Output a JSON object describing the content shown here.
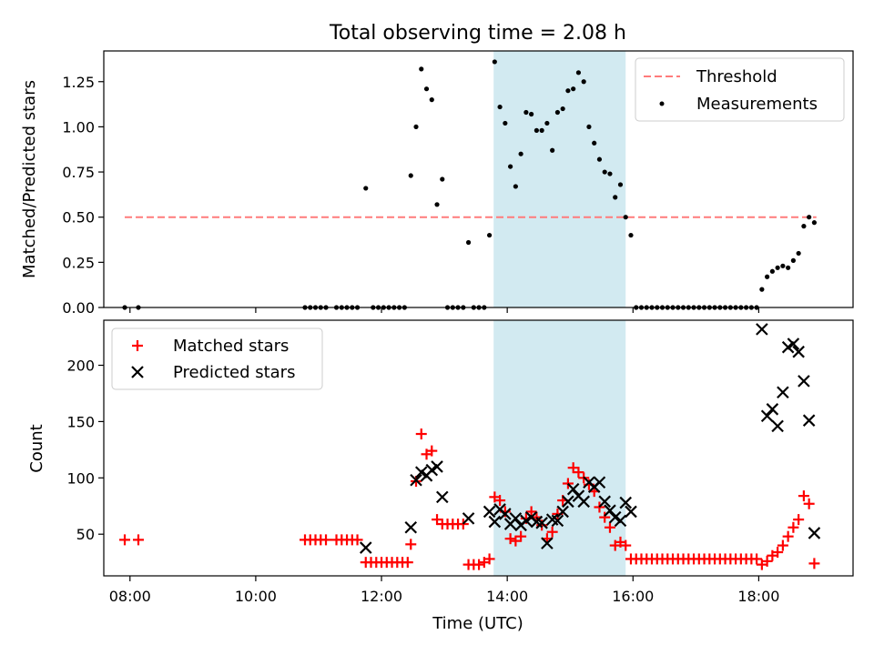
{
  "chart_data": [
    {
      "type": "scatter",
      "title": "Total observing time = 2.08 h",
      "xlabel": "",
      "ylabel": "Matched/Predicted stars",
      "ylim": [
        0,
        1.42
      ],
      "xlim": [
        "07:35",
        "19:30"
      ],
      "yticks": [
        "0.00",
        "0.25",
        "0.50",
        "0.75",
        "1.00",
        "1.25"
      ],
      "highlight_span": [
        "13:47",
        "15:53"
      ],
      "legend_position": "upper right",
      "series": [
        {
          "name": "Threshold",
          "style": "dashed-line",
          "color": "#ff7b7b",
          "x": [
            "07:55",
            "18:55"
          ],
          "y": [
            0.5,
            0.5
          ]
        },
        {
          "name": "Measurements",
          "style": "dot",
          "color": "#000000",
          "points": [
            [
              "07:55",
              0.0
            ],
            [
              "08:08",
              0.0
            ],
            [
              "10:47",
              0.0
            ],
            [
              "10:52",
              0.0
            ],
            [
              "10:57",
              0.0
            ],
            [
              "11:02",
              0.0
            ],
            [
              "11:07",
              0.0
            ],
            [
              "11:17",
              0.0
            ],
            [
              "11:22",
              0.0
            ],
            [
              "11:27",
              0.0
            ],
            [
              "11:32",
              0.0
            ],
            [
              "11:37",
              0.0
            ],
            [
              "11:45",
              0.66
            ],
            [
              "11:52",
              0.0
            ],
            [
              "11:57",
              0.0
            ],
            [
              "12:02",
              0.0
            ],
            [
              "12:07",
              0.0
            ],
            [
              "12:12",
              0.0
            ],
            [
              "12:17",
              0.0
            ],
            [
              "12:22",
              0.0
            ],
            [
              "12:28",
              0.73
            ],
            [
              "12:33",
              1.0
            ],
            [
              "12:38",
              1.32
            ],
            [
              "12:43",
              1.21
            ],
            [
              "12:48",
              1.15
            ],
            [
              "12:53",
              0.57
            ],
            [
              "12:58",
              0.71
            ],
            [
              "13:03",
              0.0
            ],
            [
              "13:08",
              0.0
            ],
            [
              "13:13",
              0.0
            ],
            [
              "13:18",
              0.0
            ],
            [
              "13:23",
              0.36
            ],
            [
              "13:28",
              0.0
            ],
            [
              "13:33",
              0.0
            ],
            [
              "13:38",
              0.0
            ],
            [
              "13:43",
              0.4
            ],
            [
              "13:48",
              1.36
            ],
            [
              "13:53",
              1.11
            ],
            [
              "13:58",
              1.02
            ],
            [
              "14:03",
              0.78
            ],
            [
              "14:08",
              0.67
            ],
            [
              "14:13",
              0.85
            ],
            [
              "14:18",
              1.08
            ],
            [
              "14:23",
              1.07
            ],
            [
              "14:28",
              0.98
            ],
            [
              "14:33",
              0.98
            ],
            [
              "14:38",
              1.02
            ],
            [
              "14:43",
              0.87
            ],
            [
              "14:48",
              1.08
            ],
            [
              "14:53",
              1.1
            ],
            [
              "14:58",
              1.2
            ],
            [
              "15:03",
              1.21
            ],
            [
              "15:08",
              1.3
            ],
            [
              "15:13",
              1.25
            ],
            [
              "15:18",
              1.0
            ],
            [
              "15:23",
              0.91
            ],
            [
              "15:28",
              0.82
            ],
            [
              "15:33",
              0.75
            ],
            [
              "15:38",
              0.74
            ],
            [
              "15:43",
              0.61
            ],
            [
              "15:48",
              0.68
            ],
            [
              "15:53",
              0.5
            ],
            [
              "15:58",
              0.4
            ],
            [
              "16:03",
              0.0
            ],
            [
              "16:08",
              0.0
            ],
            [
              "16:13",
              0.0
            ],
            [
              "16:18",
              0.0
            ],
            [
              "16:23",
              0.0
            ],
            [
              "16:28",
              0.0
            ],
            [
              "16:33",
              0.0
            ],
            [
              "16:38",
              0.0
            ],
            [
              "16:43",
              0.0
            ],
            [
              "16:48",
              0.0
            ],
            [
              "16:53",
              0.0
            ],
            [
              "16:58",
              0.0
            ],
            [
              "17:03",
              0.0
            ],
            [
              "17:08",
              0.0
            ],
            [
              "17:13",
              0.0
            ],
            [
              "17:18",
              0.0
            ],
            [
              "17:23",
              0.0
            ],
            [
              "17:28",
              0.0
            ],
            [
              "17:33",
              0.0
            ],
            [
              "17:38",
              0.0
            ],
            [
              "17:43",
              0.0
            ],
            [
              "17:48",
              0.0
            ],
            [
              "17:53",
              0.0
            ],
            [
              "17:58",
              0.0
            ],
            [
              "18:03",
              0.1
            ],
            [
              "18:08",
              0.17
            ],
            [
              "18:13",
              0.2
            ],
            [
              "18:18",
              0.22
            ],
            [
              "18:23",
              0.23
            ],
            [
              "18:28",
              0.22
            ],
            [
              "18:33",
              0.26
            ],
            [
              "18:38",
              0.3
            ],
            [
              "18:43",
              0.45
            ],
            [
              "18:48",
              0.5
            ],
            [
              "18:53",
              0.47
            ]
          ]
        }
      ]
    },
    {
      "type": "scatter",
      "title": "",
      "xlabel": "Time (UTC)",
      "ylabel": "Count",
      "ylim": [
        13,
        240
      ],
      "xlim": [
        "07:35",
        "19:30"
      ],
      "xticks": [
        "08:00",
        "10:00",
        "12:00",
        "14:00",
        "16:00",
        "18:00"
      ],
      "yticks": [
        "50",
        "100",
        "150",
        "200"
      ],
      "highlight_span": [
        "13:47",
        "15:53"
      ],
      "legend_position": "upper left",
      "series": [
        {
          "name": "Matched stars",
          "marker": "plus",
          "color": "#ff0000",
          "points": [
            [
              "07:55",
              45
            ],
            [
              "08:08",
              45
            ],
            [
              "10:47",
              45
            ],
            [
              "10:52",
              45
            ],
            [
              "10:57",
              45
            ],
            [
              "11:02",
              45
            ],
            [
              "11:07",
              45
            ],
            [
              "11:17",
              45
            ],
            [
              "11:22",
              45
            ],
            [
              "11:27",
              45
            ],
            [
              "11:32",
              45
            ],
            [
              "11:37",
              45
            ],
            [
              "11:45",
              25
            ],
            [
              "11:50",
              25
            ],
            [
              "11:55",
              25
            ],
            [
              "12:00",
              25
            ],
            [
              "12:05",
              25
            ],
            [
              "12:10",
              25
            ],
            [
              "12:15",
              25
            ],
            [
              "12:20",
              25
            ],
            [
              "12:25",
              25
            ],
            [
              "12:28",
              41
            ],
            [
              "12:33",
              97
            ],
            [
              "12:38",
              139
            ],
            [
              "12:43",
              121
            ],
            [
              "12:48",
              124
            ],
            [
              "12:53",
              63
            ],
            [
              "12:58",
              59
            ],
            [
              "13:03",
              59
            ],
            [
              "13:08",
              59
            ],
            [
              "13:13",
              59
            ],
            [
              "13:18",
              59
            ],
            [
              "13:23",
              23
            ],
            [
              "13:28",
              23
            ],
            [
              "13:33",
              23
            ],
            [
              "13:38",
              25
            ],
            [
              "13:43",
              28
            ],
            [
              "13:48",
              83
            ],
            [
              "13:53",
              80
            ],
            [
              "13:58",
              70
            ],
            [
              "14:03",
              46
            ],
            [
              "14:08",
              44
            ],
            [
              "14:13",
              48
            ],
            [
              "14:18",
              64
            ],
            [
              "14:23",
              70
            ],
            [
              "14:28",
              65
            ],
            [
              "14:33",
              58
            ],
            [
              "14:38",
              46
            ],
            [
              "14:43",
              52
            ],
            [
              "14:48",
              68
            ],
            [
              "14:53",
              80
            ],
            [
              "14:58",
              95
            ],
            [
              "15:03",
              109
            ],
            [
              "15:08",
              105
            ],
            [
              "15:13",
              100
            ],
            [
              "15:18",
              94
            ],
            [
              "15:23",
              88
            ],
            [
              "15:28",
              74
            ],
            [
              "15:33",
              65
            ],
            [
              "15:38",
              56
            ],
            [
              "15:43",
              40
            ],
            [
              "15:48",
              43
            ],
            [
              "15:53",
              40
            ],
            [
              "15:58",
              28
            ],
            [
              "16:03",
              28
            ],
            [
              "16:08",
              28
            ],
            [
              "16:13",
              28
            ],
            [
              "16:18",
              28
            ],
            [
              "16:23",
              28
            ],
            [
              "16:28",
              28
            ],
            [
              "16:33",
              28
            ],
            [
              "16:38",
              28
            ],
            [
              "16:43",
              28
            ],
            [
              "16:48",
              28
            ],
            [
              "16:53",
              28
            ],
            [
              "16:58",
              28
            ],
            [
              "17:03",
              28
            ],
            [
              "17:08",
              28
            ],
            [
              "17:13",
              28
            ],
            [
              "17:18",
              28
            ],
            [
              "17:23",
              28
            ],
            [
              "17:28",
              28
            ],
            [
              "17:33",
              28
            ],
            [
              "17:38",
              28
            ],
            [
              "17:43",
              28
            ],
            [
              "17:48",
              28
            ],
            [
              "17:53",
              28
            ],
            [
              "17:58",
              28
            ],
            [
              "18:03",
              23
            ],
            [
              "18:08",
              26
            ],
            [
              "18:13",
              31
            ],
            [
              "18:18",
              34
            ],
            [
              "18:23",
              40
            ],
            [
              "18:28",
              48
            ],
            [
              "18:33",
              56
            ],
            [
              "18:38",
              63
            ],
            [
              "18:43",
              84
            ],
            [
              "18:48",
              77
            ],
            [
              "18:53",
              24
            ]
          ]
        },
        {
          "name": "Predicted stars",
          "marker": "x",
          "color": "#000000",
          "points": [
            [
              "11:45",
              38
            ],
            [
              "12:28",
              56
            ],
            [
              "12:33",
              98
            ],
            [
              "12:38",
              105
            ],
            [
              "12:43",
              102
            ],
            [
              "12:48",
              107
            ],
            [
              "12:53",
              110
            ],
            [
              "12:58",
              83
            ],
            [
              "13:23",
              64
            ],
            [
              "13:43",
              70
            ],
            [
              "13:48",
              61
            ],
            [
              "13:53",
              72
            ],
            [
              "13:58",
              68
            ],
            [
              "14:03",
              59
            ],
            [
              "14:08",
              64
            ],
            [
              "14:13",
              58
            ],
            [
              "14:18",
              62
            ],
            [
              "14:23",
              65
            ],
            [
              "14:28",
              61
            ],
            [
              "14:33",
              60
            ],
            [
              "14:38",
              42
            ],
            [
              "14:43",
              63
            ],
            [
              "14:48",
              62
            ],
            [
              "14:53",
              70
            ],
            [
              "14:58",
              79
            ],
            [
              "15:03",
              90
            ],
            [
              "15:08",
              84
            ],
            [
              "15:13",
              79
            ],
            [
              "15:18",
              96
            ],
            [
              "15:23",
              92
            ],
            [
              "15:28",
              96
            ],
            [
              "15:33",
              79
            ],
            [
              "15:38",
              71
            ],
            [
              "15:43",
              65
            ],
            [
              "15:48",
              62
            ],
            [
              "15:53",
              78
            ],
            [
              "15:58",
              70
            ],
            [
              "18:03",
              232
            ],
            [
              "18:08",
              155
            ],
            [
              "18:13",
              161
            ],
            [
              "18:18",
              146
            ],
            [
              "18:23",
              176
            ],
            [
              "18:28",
              216
            ],
            [
              "18:33",
              219
            ],
            [
              "18:38",
              212
            ],
            [
              "18:43",
              186
            ],
            [
              "18:48",
              151
            ],
            [
              "18:53",
              51
            ]
          ]
        }
      ]
    }
  ],
  "colors": {
    "highlight": "#add8e6",
    "axes": "#000000"
  }
}
